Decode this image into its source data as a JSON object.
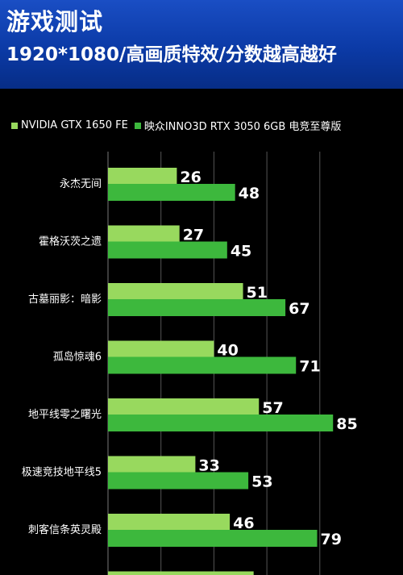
{
  "header": {
    "title": "游戏测试",
    "subtitle": "1920*1080/高画质特效/分数越高越好"
  },
  "colors": {
    "series1": "#98d95e",
    "series2": "#3db83d",
    "header": "#0b3aa6",
    "background": "#000000",
    "grid": "#555555"
  },
  "chart_data": {
    "type": "bar",
    "orientation": "horizontal",
    "title": "游戏测试",
    "subtitle": "1920*1080/高画质特效/分数越高越好",
    "legend_position": "top",
    "categories": [
      "永杰无间",
      "霍格沃茨之遗",
      "古墓丽影：暗影",
      "孤岛惊魂6",
      "地平线零之曙光",
      "极速竞技地平线5",
      "刺客信条英灵殿"
    ],
    "series": [
      {
        "name": "NVIDIA GTX 1650 FE",
        "values": [
          26,
          27,
          51,
          40,
          57,
          33,
          46
        ]
      },
      {
        "name": "映众INNO3D  RTX 3050 6GB 电竞至尊版",
        "values": [
          48,
          45,
          67,
          71,
          85,
          53,
          79
        ]
      }
    ],
    "grid": true
  }
}
